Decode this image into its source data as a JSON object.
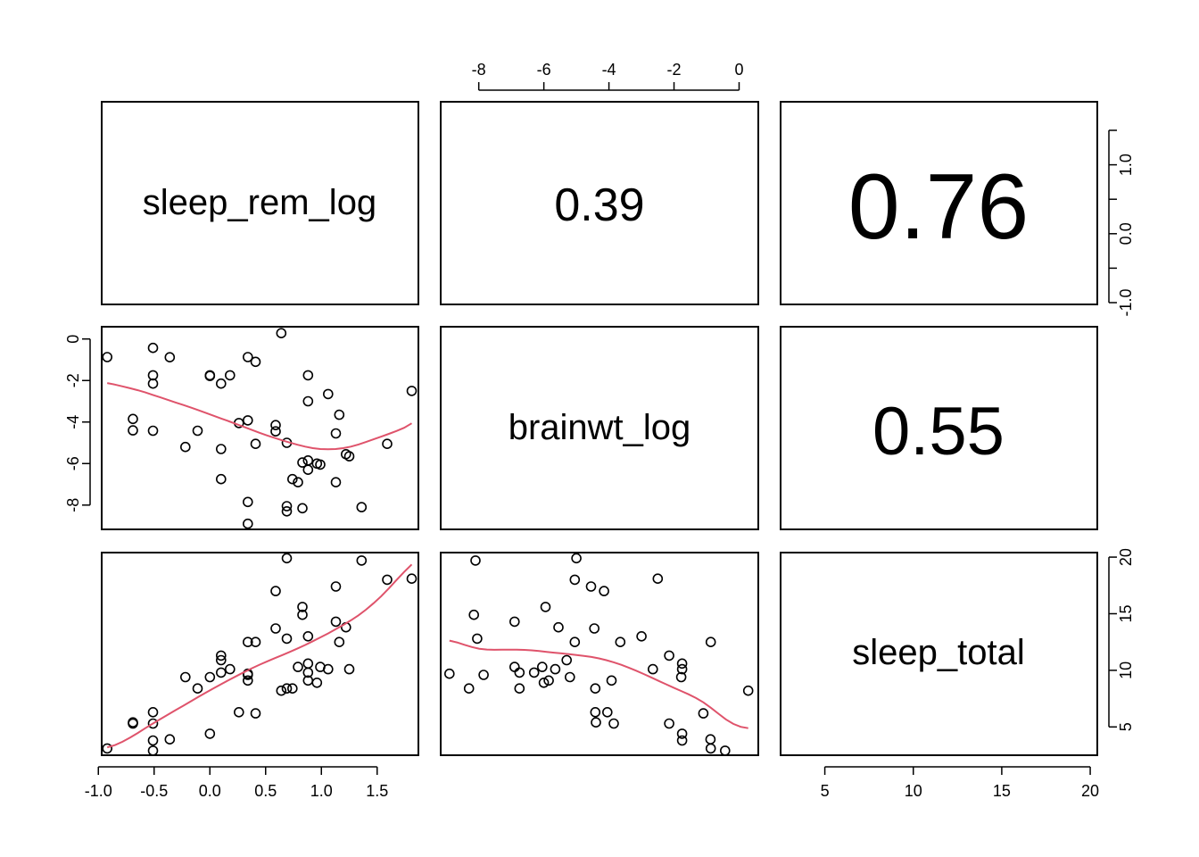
{
  "chart_data": {
    "type": "scatter",
    "matrix": "pairs",
    "variables": [
      "sleep_rem_log",
      "brainwt_log",
      "sleep_total"
    ],
    "correlations": [
      {
        "row": "sleep_rem_log",
        "col": "brainwt_log",
        "label": "0.39",
        "value": 0.39
      },
      {
        "row": "sleep_rem_log",
        "col": "sleep_total",
        "label": "0.76",
        "value": 0.76
      },
      {
        "row": "brainwt_log",
        "col": "sleep_total",
        "label": "0.55",
        "value": 0.55
      }
    ],
    "axes": {
      "sleep_rem_log": {
        "range": [
          -0.97,
          1.87
        ],
        "ticks": [
          -1.0,
          -0.5,
          0.0,
          0.5,
          1.0,
          1.5
        ],
        "tick_labels": [
          "-1.0",
          "-0.5",
          "0.0",
          "0.5",
          "1.0",
          "1.5"
        ]
      },
      "brainwt_log": {
        "range": [
          -9.17,
          0.59
        ],
        "ticks": [
          -8,
          -6,
          -4,
          -2,
          0
        ],
        "tick_labels": [
          "-8",
          "-6",
          "-4",
          "-2",
          "0"
        ]
      },
      "sleep_total": {
        "range": [
          2.5,
          20.4
        ],
        "ticks": [
          5,
          10,
          15,
          20
        ],
        "tick_labels": [
          "5",
          "10",
          "15",
          "20"
        ]
      },
      "right_top_axis": {
        "ticks": [
          -1.0,
          -0.5,
          0.0,
          0.5,
          1.0,
          1.5
        ],
        "tick_labels": [
          "-1.0",
          "0.0",
          "1.0"
        ]
      }
    },
    "smooth_color": "#DF536B",
    "points": [
      {
        "rem": -0.92,
        "brain": -0.87,
        "total": 3.1
      },
      {
        "rem": -0.69,
        "brain": -3.85,
        "total": 5.3
      },
      {
        "rem": -0.69,
        "brain": -4.4,
        "total": 5.4
      },
      {
        "rem": -0.51,
        "brain": -0.43,
        "total": 2.9
      },
      {
        "rem": -0.51,
        "brain": -1.75,
        "total": 3.8
      },
      {
        "rem": -0.51,
        "brain": -2.15,
        "total": 5.3
      },
      {
        "rem": -0.51,
        "brain": -4.42,
        "total": 6.3
      },
      {
        "rem": -0.36,
        "brain": -0.88,
        "total": 3.9
      },
      {
        "rem": -0.22,
        "brain": -5.2,
        "total": 9.4
      },
      {
        "rem": -0.11,
        "brain": -4.42,
        "total": 8.4
      },
      {
        "rem": 0.0,
        "brain": -1.75,
        "total": 4.4
      },
      {
        "rem": 0.0,
        "brain": -1.78,
        "total": 9.4
      },
      {
        "rem": 0.1,
        "brain": -2.15,
        "total": 11.3
      },
      {
        "rem": 0.1,
        "brain": -5.3,
        "total": 10.9
      },
      {
        "rem": 0.1,
        "brain": -6.75,
        "total": 9.8
      },
      {
        "rem": 0.18,
        "brain": -1.75,
        "total": 10.1
      },
      {
        "rem": 0.26,
        "brain": -4.05,
        "total": 6.3
      },
      {
        "rem": 0.34,
        "brain": -0.87,
        "total": 12.5
      },
      {
        "rem": 0.34,
        "brain": -3.92,
        "total": 9.1
      },
      {
        "rem": 0.34,
        "brain": -7.85,
        "total": 9.6
      },
      {
        "rem": 0.34,
        "brain": -8.9,
        "total": 9.7
      },
      {
        "rem": 0.41,
        "brain": -1.1,
        "total": 6.2
      },
      {
        "rem": 0.41,
        "brain": -5.05,
        "total": 12.5
      },
      {
        "rem": 0.59,
        "brain": -4.15,
        "total": 17.0
      },
      {
        "rem": 0.59,
        "brain": -4.45,
        "total": 13.7
      },
      {
        "rem": 0.64,
        "brain": 0.28,
        "total": 8.2
      },
      {
        "rem": 0.69,
        "brain": -5.0,
        "total": 19.9
      },
      {
        "rem": 0.69,
        "brain": -8.05,
        "total": 12.8
      },
      {
        "rem": 0.69,
        "brain": -8.3,
        "total": 8.4
      },
      {
        "rem": 0.74,
        "brain": -6.75,
        "total": 8.4
      },
      {
        "rem": 0.79,
        "brain": -6.9,
        "total": 10.3
      },
      {
        "rem": 0.83,
        "brain": -5.95,
        "total": 15.6
      },
      {
        "rem": 0.83,
        "brain": -8.15,
        "total": 14.9
      },
      {
        "rem": 0.88,
        "brain": -1.75,
        "total": 10.6
      },
      {
        "rem": 0.88,
        "brain": -3.0,
        "total": 13.0
      },
      {
        "rem": 0.88,
        "brain": -5.85,
        "total": 9.1
      },
      {
        "rem": 0.88,
        "brain": -6.3,
        "total": 9.8
      },
      {
        "rem": 0.96,
        "brain": -6.0,
        "total": 8.9
      },
      {
        "rem": 0.99,
        "brain": -6.05,
        "total": 10.3
      },
      {
        "rem": 1.06,
        "brain": -2.65,
        "total": 10.1
      },
      {
        "rem": 1.13,
        "brain": -4.55,
        "total": 17.4
      },
      {
        "rem": 1.13,
        "brain": -6.9,
        "total": 14.3
      },
      {
        "rem": 1.16,
        "brain": -3.65,
        "total": 12.5
      },
      {
        "rem": 1.22,
        "brain": -5.55,
        "total": 13.8
      },
      {
        "rem": 1.25,
        "brain": -5.65,
        "total": 10.1
      },
      {
        "rem": 1.36,
        "brain": -8.1,
        "total": 19.7
      },
      {
        "rem": 1.59,
        "brain": -5.05,
        "total": 18.0
      },
      {
        "rem": 1.81,
        "brain": -2.5,
        "total": 18.1
      }
    ]
  }
}
